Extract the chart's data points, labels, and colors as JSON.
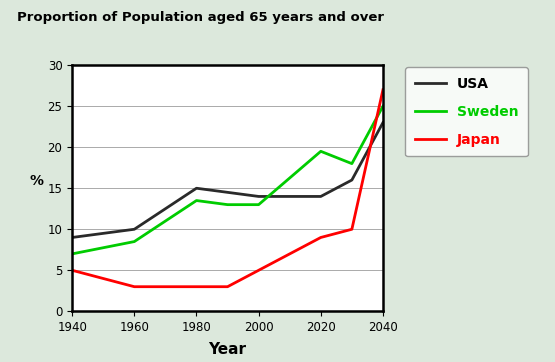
{
  "title": "Proportion of Population aged 65 years and over",
  "xlabel": "Year",
  "ylabel": "%",
  "years": [
    1940,
    1960,
    1980,
    1990,
    2000,
    2020,
    2030,
    2040
  ],
  "usa": [
    9,
    10,
    15,
    14.5,
    14,
    14,
    16,
    23
  ],
  "sweden": [
    7,
    8.5,
    13.5,
    13,
    13,
    19.5,
    18,
    25
  ],
  "japan": [
    5,
    3,
    3,
    3,
    5,
    9,
    10,
    27
  ],
  "usa_color": "#2a2a2a",
  "sweden_color": "#00cc00",
  "japan_color": "#ff0000",
  "ylim": [
    0,
    30
  ],
  "xlim": [
    1940,
    2040
  ],
  "xticks": [
    1940,
    1960,
    1980,
    2000,
    2020,
    2040
  ],
  "yticks": [
    0,
    5,
    10,
    15,
    20,
    25,
    30
  ],
  "bg_color": "#ffffff",
  "outer_bg": "#dce8dc",
  "linewidth": 2.0,
  "legend_labels": [
    "USA",
    "Sweden",
    "Japan"
  ],
  "legend_colors": [
    "#2a2a2a",
    "#00cc00",
    "#ff0000"
  ],
  "legend_text_colors": [
    "#000000",
    "#00cc00",
    "#ff0000"
  ]
}
